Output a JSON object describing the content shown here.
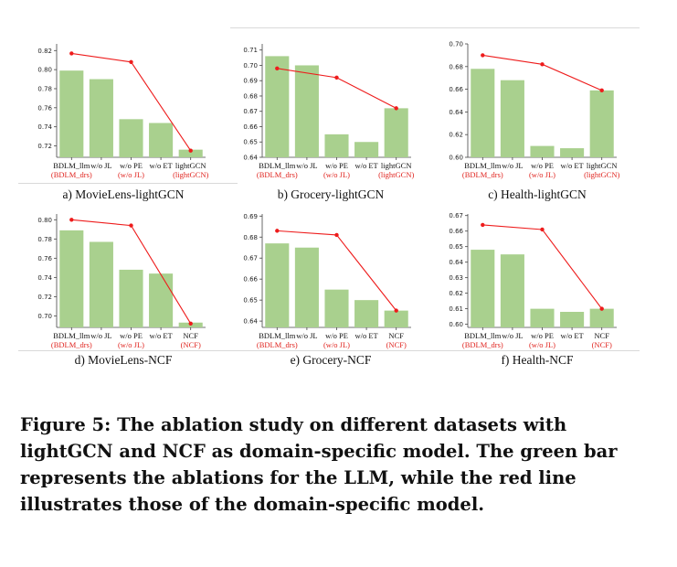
{
  "figure": {
    "caption": "Figure 5: The ablation study on different datasets with lightGCN and NCF as domain-specific model. The green bar represents the ablations for the LLM, while the red line illustrates those of the domain-specific model.",
    "colors": {
      "bar": "#a9d08e",
      "line": "#ee1c1c",
      "label_red": "#e0231e"
    }
  },
  "chart_data": [
    {
      "type": "bar",
      "subcaption": "a) MovieLens-lightGCN",
      "categories": [
        "BDLM_llm",
        "w/o JL",
        "w/o PE",
        "w/o ET",
        "lightGCN"
      ],
      "sublabels": [
        "(BDLM_drs)",
        "",
        "(w/o JL)",
        "",
        "(lightGCN)"
      ],
      "yticks": [
        "0.72",
        "0.74",
        "0.76",
        "0.78",
        "0.80",
        "0.82"
      ],
      "ylim": [
        0.708,
        0.827
      ],
      "series": [
        {
          "type": "bar",
          "values": [
            0.799,
            0.79,
            0.748,
            0.744,
            0.716
          ]
        },
        {
          "type": "line",
          "values": [
            0.817,
            null,
            0.808,
            null,
            0.715
          ]
        }
      ]
    },
    {
      "type": "bar",
      "subcaption": "b) Grocery-lightGCN",
      "categories": [
        "BDLM_llm",
        "w/o JL",
        "w/o PE",
        "w/o ET",
        "lightGCN"
      ],
      "sublabels": [
        "(BDLM_drs)",
        "",
        "(w/o JL)",
        "",
        "(lightGCN)"
      ],
      "yticks": [
        "0.64",
        "0.65",
        "0.66",
        "0.67",
        "0.68",
        "0.69",
        "0.70",
        "0.71"
      ],
      "ylim": [
        0.64,
        0.714
      ],
      "series": [
        {
          "type": "bar",
          "values": [
            0.706,
            0.7,
            0.655,
            0.65,
            0.672
          ]
        },
        {
          "type": "line",
          "values": [
            0.698,
            null,
            0.692,
            null,
            0.672
          ]
        }
      ]
    },
    {
      "type": "bar",
      "subcaption": "c) Health-lightGCN",
      "categories": [
        "BDLM_llm",
        "w/o JL",
        "w/o PE",
        "w/o ET",
        "lightGCN"
      ],
      "sublabels": [
        "(BDLM_drs)",
        "",
        "(w/o JL)",
        "",
        "(lightGCN)"
      ],
      "yticks": [
        "0.60",
        "0.62",
        "0.64",
        "0.66",
        "0.68",
        "0.70"
      ],
      "ylim": [
        0.6,
        0.7
      ],
      "series": [
        {
          "type": "bar",
          "values": [
            0.678,
            0.668,
            0.61,
            0.608,
            0.659
          ]
        },
        {
          "type": "line",
          "values": [
            0.69,
            null,
            0.682,
            null,
            0.659
          ]
        }
      ]
    },
    {
      "type": "bar",
      "subcaption": "d) MovieLens-NCF",
      "categories": [
        "BDLM_llm",
        "w/o JL",
        "w/o PE",
        "w/o ET",
        "NCF"
      ],
      "sublabels": [
        "(BDLM_drs)",
        "",
        "(w/o JL)",
        "",
        "(NCF)"
      ],
      "yticks": [
        "0.70",
        "0.72",
        "0.74",
        "0.76",
        "0.78",
        "0.80"
      ],
      "ylim": [
        0.688,
        0.806
      ],
      "series": [
        {
          "type": "bar",
          "values": [
            0.789,
            0.777,
            0.748,
            0.744,
            0.693
          ]
        },
        {
          "type": "line",
          "values": [
            0.8,
            null,
            0.794,
            null,
            0.692
          ]
        }
      ]
    },
    {
      "type": "bar",
      "subcaption": "e) Grocery-NCF",
      "categories": [
        "BDLM_llm",
        "w/o JL",
        "w/o PE",
        "w/o ET",
        "NCF"
      ],
      "sublabels": [
        "(BDLM_drs)",
        "",
        "(w/o JL)",
        "",
        "(NCF)"
      ],
      "yticks": [
        "0.64",
        "0.65",
        "0.66",
        "0.67",
        "0.68",
        "0.69"
      ],
      "ylim": [
        0.637,
        0.691
      ],
      "series": [
        {
          "type": "bar",
          "values": [
            0.677,
            0.675,
            0.655,
            0.65,
            0.645
          ]
        },
        {
          "type": "line",
          "values": [
            0.683,
            null,
            0.681,
            null,
            0.645
          ]
        }
      ]
    },
    {
      "type": "bar",
      "subcaption": "f) Health-NCF",
      "categories": [
        "BDLM_llm",
        "w/o JL",
        "w/o PE",
        "w/o ET",
        "NCF"
      ],
      "sublabels": [
        "(BDLM_drs)",
        "",
        "(w/o JL)",
        "",
        "(NCF)"
      ],
      "yticks": [
        "0.60",
        "0.61",
        "0.62",
        "0.63",
        "0.64",
        "0.65",
        "0.66",
        "0.67"
      ],
      "ylim": [
        0.598,
        0.671
      ],
      "series": [
        {
          "type": "bar",
          "values": [
            0.648,
            0.645,
            0.61,
            0.608,
            0.61
          ]
        },
        {
          "type": "line",
          "values": [
            0.664,
            null,
            0.661,
            null,
            0.61
          ]
        }
      ]
    }
  ]
}
